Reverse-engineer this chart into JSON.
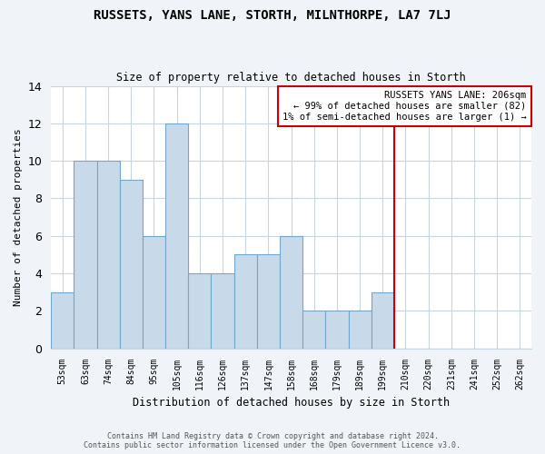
{
  "title": "RUSSETS, YANS LANE, STORTH, MILNTHORPE, LA7 7LJ",
  "subtitle": "Size of property relative to detached houses in Storth",
  "xlabel": "Distribution of detached houses by size in Storth",
  "ylabel": "Number of detached properties",
  "footer_line1": "Contains HM Land Registry data © Crown copyright and database right 2024.",
  "footer_line2": "Contains public sector information licensed under the Open Government Licence v3.0.",
  "annotation_title": "RUSSETS YANS LANE: 206sqm",
  "annotation_line1": "← 99% of detached houses are smaller (82)",
  "annotation_line2": "1% of semi-detached houses are larger (1) →",
  "bar_labels": [
    "53sqm",
    "63sqm",
    "74sqm",
    "84sqm",
    "95sqm",
    "105sqm",
    "116sqm",
    "126sqm",
    "137sqm",
    "147sqm",
    "158sqm",
    "168sqm",
    "179sqm",
    "189sqm",
    "199sqm",
    "210sqm",
    "220sqm",
    "231sqm",
    "241sqm",
    "252sqm",
    "262sqm"
  ],
  "bar_values": [
    3,
    10,
    10,
    9,
    6,
    12,
    4,
    4,
    5,
    5,
    6,
    2,
    2,
    2,
    3,
    0,
    0,
    0,
    0,
    0,
    0
  ],
  "bar_color": "#c8daea",
  "bar_edge_color": "#6fa8cc",
  "highlight_bar_index": 14,
  "highlight_color": "#cc0000",
  "plot_bg_color": "#ffffff",
  "fig_bg_color": "#f0f4f8",
  "grid_color": "#c8d4e0",
  "ylim": [
    0,
    14
  ],
  "yticks": [
    0,
    2,
    4,
    6,
    8,
    10,
    12,
    14
  ]
}
